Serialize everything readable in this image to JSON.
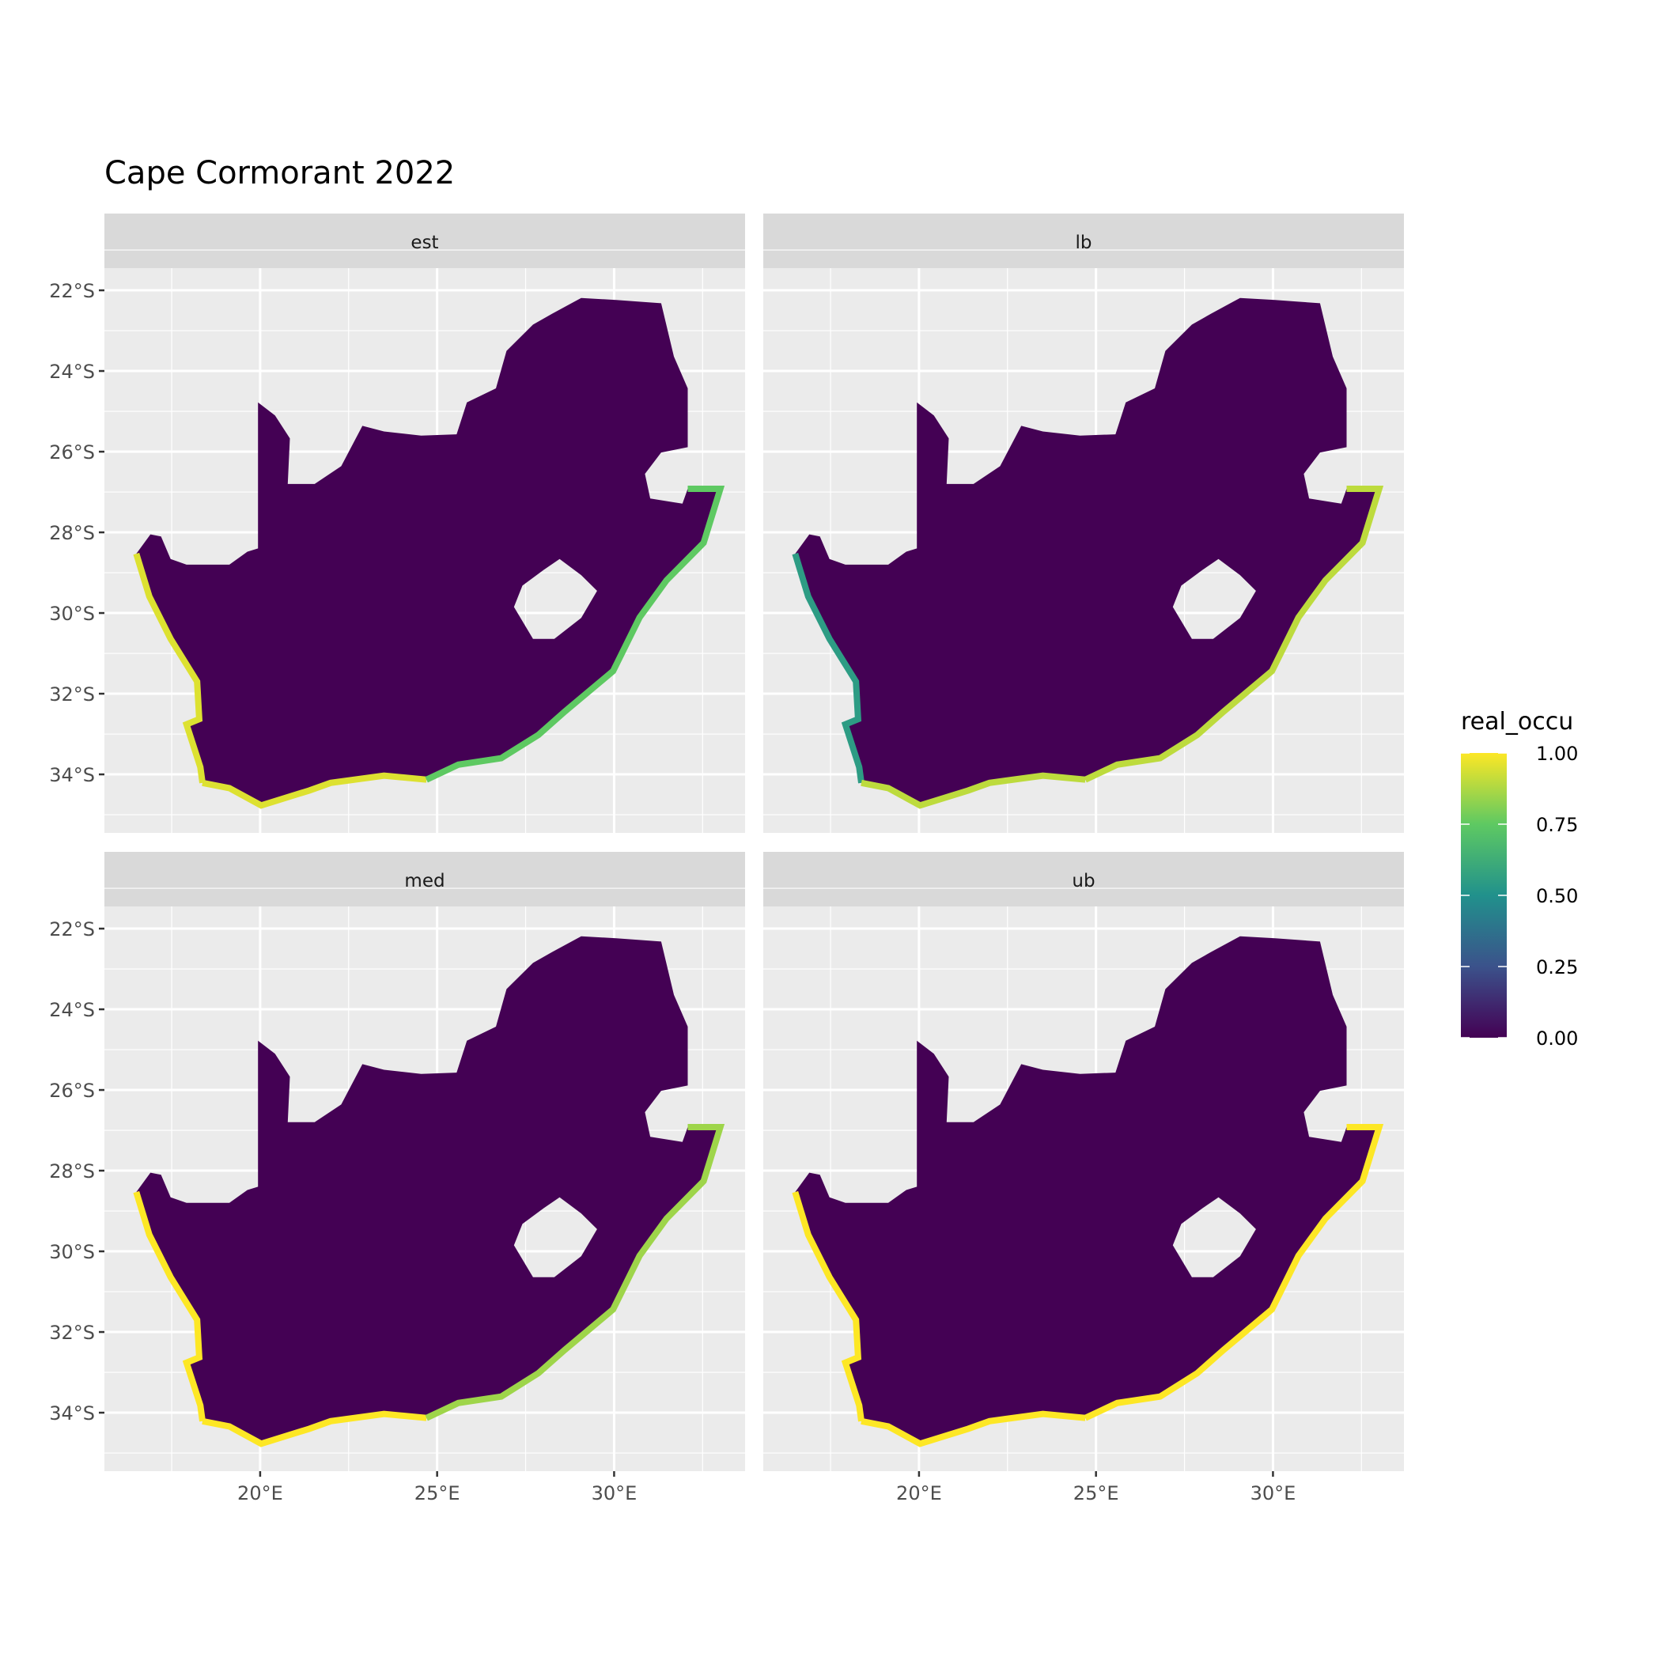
{
  "chart_data": {
    "type": "heatmap",
    "title": "Cape Cormorant 2022",
    "facets": [
      "est",
      "lb",
      "med",
      "ub"
    ],
    "x_ticks": [
      {
        "value": 20,
        "label": "20°E"
      },
      {
        "value": 25,
        "label": "25°E"
      },
      {
        "value": 30,
        "label": "30°E"
      }
    ],
    "y_ticks": [
      {
        "value": -22,
        "label": "22°S"
      },
      {
        "value": -24,
        "label": "24°S"
      },
      {
        "value": -26,
        "label": "26°S"
      },
      {
        "value": -28,
        "label": "28°S"
      },
      {
        "value": -30,
        "label": "30°S"
      },
      {
        "value": -32,
        "label": "32°S"
      },
      {
        "value": -34,
        "label": "34°S"
      }
    ],
    "xlim": [
      15.6,
      33.7
    ],
    "ylim": [
      -35.45,
      -21.45
    ],
    "grid": true,
    "legend": {
      "title": "real_occu",
      "position": "right",
      "range": [
        0,
        1
      ],
      "ticks": [
        {
          "value": 1,
          "label": "1.00"
        },
        {
          "value": 0.75,
          "label": "0.75"
        },
        {
          "value": 0.5,
          "label": "0.50"
        },
        {
          "value": 0.25,
          "label": "0.25"
        },
        {
          "value": 0,
          "label": "0.00"
        }
      ],
      "colormap": [
        "#440154",
        "#3b528b",
        "#21918c",
        "#5ec962",
        "#fde725"
      ]
    },
    "interior_occupancy": 0.0,
    "coastal_occupancy": {
      "est": {
        "west": 0.95,
        "south": 0.95,
        "east": 0.75
      },
      "lb": {
        "west": 0.55,
        "south": 0.9,
        "east": 0.9
      },
      "med": {
        "west": 1.0,
        "south": 1.0,
        "east": 0.85
      },
      "ub": {
        "west": 1.0,
        "south": 1.0,
        "east": 1.0
      }
    },
    "land_outline": [
      [
        16.5,
        -28.53
      ],
      [
        16.9,
        -28.05
      ],
      [
        17.2,
        -28.1
      ],
      [
        17.47,
        -28.66
      ],
      [
        17.92,
        -28.8
      ],
      [
        19.13,
        -28.8
      ],
      [
        19.64,
        -28.48
      ],
      [
        19.94,
        -28.4
      ],
      [
        19.94,
        -24.78
      ],
      [
        20.42,
        -25.1
      ],
      [
        20.84,
        -25.67
      ],
      [
        20.78,
        -26.8
      ],
      [
        21.54,
        -26.8
      ],
      [
        22.29,
        -26.36
      ],
      [
        22.89,
        -25.36
      ],
      [
        23.5,
        -25.5
      ],
      [
        24.55,
        -25.6
      ],
      [
        25.55,
        -25.57
      ],
      [
        25.84,
        -24.78
      ],
      [
        26.66,
        -24.43
      ],
      [
        26.96,
        -23.5
      ],
      [
        27.71,
        -22.85
      ],
      [
        28.25,
        -22.58
      ],
      [
        29.07,
        -22.19
      ],
      [
        30.06,
        -22.24
      ],
      [
        31.33,
        -22.32
      ],
      [
        31.69,
        -23.64
      ],
      [
        32.08,
        -24.43
      ],
      [
        32.08,
        -25.89
      ],
      [
        31.33,
        -26.02
      ],
      [
        30.87,
        -26.55
      ],
      [
        31.02,
        -27.16
      ],
      [
        31.93,
        -27.29
      ],
      [
        32.08,
        -26.92
      ],
      [
        33.0,
        -26.92
      ],
      [
        32.53,
        -28.26
      ],
      [
        31.48,
        -29.19
      ],
      [
        30.72,
        -30.11
      ],
      [
        29.97,
        -31.44
      ],
      [
        28.61,
        -32.44
      ],
      [
        27.86,
        -33.02
      ],
      [
        26.81,
        -33.6
      ],
      [
        25.6,
        -33.76
      ],
      [
        24.7,
        -34.13
      ],
      [
        23.5,
        -34.03
      ],
      [
        21.99,
        -34.21
      ],
      [
        21.39,
        -34.4
      ],
      [
        20.03,
        -34.77
      ],
      [
        19.13,
        -34.34
      ],
      [
        18.37,
        -34.21
      ],
      [
        18.31,
        -33.82
      ],
      [
        17.92,
        -32.76
      ],
      [
        18.28,
        -32.63
      ],
      [
        18.22,
        -31.7
      ],
      [
        17.47,
        -30.64
      ],
      [
        16.87,
        -29.59
      ]
    ],
    "lesotho_hole": [
      [
        28.46,
        -28.66
      ],
      [
        29.07,
        -29.06
      ],
      [
        29.52,
        -29.45
      ],
      [
        29.07,
        -30.12
      ],
      [
        28.31,
        -30.64
      ],
      [
        27.71,
        -30.64
      ],
      [
        27.17,
        -29.85
      ],
      [
        27.41,
        -29.32
      ],
      [
        28.01,
        -28.93
      ]
    ]
  }
}
